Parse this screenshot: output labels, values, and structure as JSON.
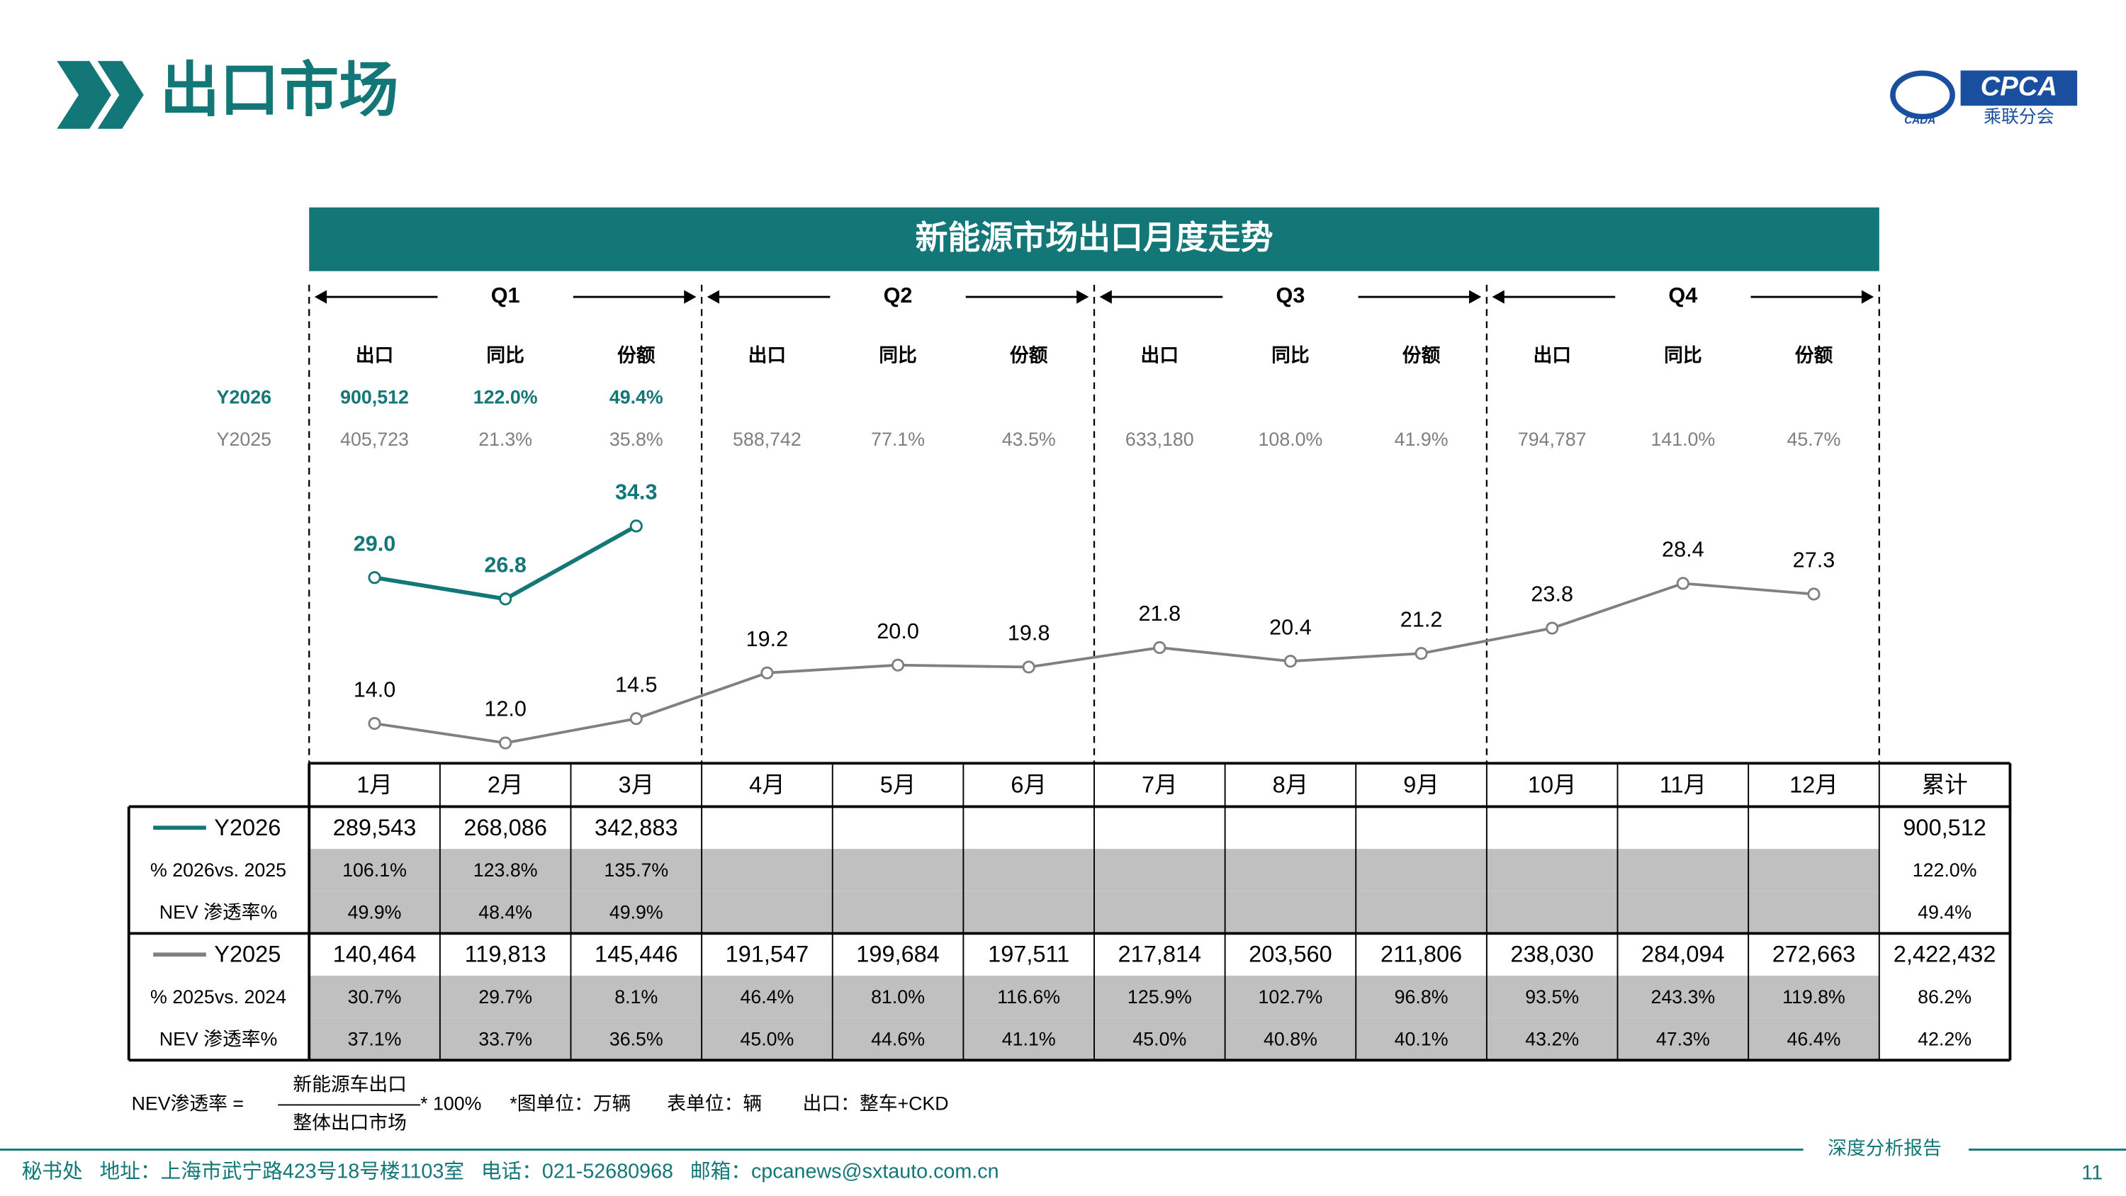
{
  "header": {
    "title": "出口市场",
    "logo": {
      "text": "CPCA",
      "subtitle": "乘联分会",
      "mark": "CADA"
    }
  },
  "chart_data": {
    "type": "line",
    "title": "新能源市场出口月度走势",
    "categories": [
      "1月",
      "2月",
      "3月",
      "4月",
      "5月",
      "6月",
      "7月",
      "8月",
      "9月",
      "10月",
      "11月",
      "12月"
    ],
    "series": [
      {
        "name": "Y2026",
        "color": "#137677",
        "values": [
          29.0,
          26.8,
          34.3,
          null,
          null,
          null,
          null,
          null,
          null,
          null,
          null,
          null
        ],
        "value_labels": [
          "29.0",
          "26.8",
          "34.3",
          null,
          null,
          null,
          null,
          null,
          null,
          null,
          null,
          null
        ]
      },
      {
        "name": "Y2025",
        "color": "#808080",
        "values": [
          14.0,
          12.0,
          14.5,
          19.2,
          20.0,
          19.8,
          21.8,
          20.4,
          21.2,
          23.8,
          28.4,
          27.3
        ],
        "value_labels": [
          "14.0",
          "12.0",
          "14.5",
          "19.2",
          "20.0",
          "19.8",
          "21.8",
          "20.4",
          "21.2",
          "23.8",
          "28.4",
          "27.3"
        ]
      }
    ]
  },
  "quarter_stats": {
    "columns": [
      "出口",
      "同比",
      "份额"
    ],
    "quarters": [
      {
        "name": "Q1",
        "rows": [
          [
            "900,512",
            "122.0%",
            "49.4%"
          ],
          [
            "405,723",
            "21.3%",
            "35.8%"
          ]
        ]
      },
      {
        "name": "Q2",
        "rows": [
          null,
          [
            "588,742",
            "77.1%",
            "43.5%"
          ]
        ]
      },
      {
        "name": "Q3",
        "rows": [
          null,
          [
            "633,180",
            "108.0%",
            "41.9%"
          ]
        ]
      },
      {
        "name": "Q4",
        "rows": [
          null,
          [
            "794,787",
            "141.0%",
            "45.7%"
          ]
        ]
      }
    ]
  },
  "table": {
    "total_label": "累计",
    "rows": [
      {
        "cells": [
          "289,543",
          "268,086",
          "342,883",
          null,
          null,
          null,
          null,
          null,
          null,
          null,
          null,
          null,
          "900,512"
        ]
      },
      {
        "label": "% 2026vs. 2025",
        "cells": [
          "106.1%",
          "123.8%",
          "135.7%",
          null,
          null,
          null,
          null,
          null,
          null,
          null,
          null,
          null,
          "122.0%"
        ]
      },
      {
        "label": "NEV 渗透率%",
        "cells": [
          "49.9%",
          "48.4%",
          "49.9%",
          null,
          null,
          null,
          null,
          null,
          null,
          null,
          null,
          null,
          "49.4%"
        ]
      },
      {
        "cells": [
          "140,464",
          "119,813",
          "145,446",
          "191,547",
          "199,684",
          "197,511",
          "217,814",
          "203,560",
          "211,806",
          "238,030",
          "284,094",
          "272,663",
          "2,422,432"
        ]
      },
      {
        "label": "% 2025vs. 2024",
        "cells": [
          "30.7%",
          "29.7%",
          "8.1%",
          "46.4%",
          "81.0%",
          "116.6%",
          "125.9%",
          "102.7%",
          "96.8%",
          "93.5%",
          "243.3%",
          "119.8%",
          "86.2%"
        ]
      },
      {
        "label": "NEV 渗透率%",
        "cells": [
          "37.1%",
          "33.7%",
          "36.5%",
          "45.0%",
          "44.6%",
          "41.1%",
          "45.0%",
          "40.8%",
          "40.1%",
          "43.2%",
          "47.3%",
          "46.4%",
          "42.2%"
        ]
      }
    ]
  },
  "footnote": {
    "formula_label": "NEV渗透率 =",
    "numerator": "新能源车出口",
    "denominator": "整体出口市场",
    "multiplier": "* 100%",
    "chart_unit": "*图单位：万辆",
    "table_unit": "表单位：辆",
    "export_note": "出口：整车+CKD"
  },
  "footer": {
    "contact": "秘书处   地址：上海市武宁路423号18号楼1103室   电话：021-52680968   邮箱：cpcanews@sxtauto.com.cn",
    "report": "深度分析报告",
    "page": "11"
  }
}
